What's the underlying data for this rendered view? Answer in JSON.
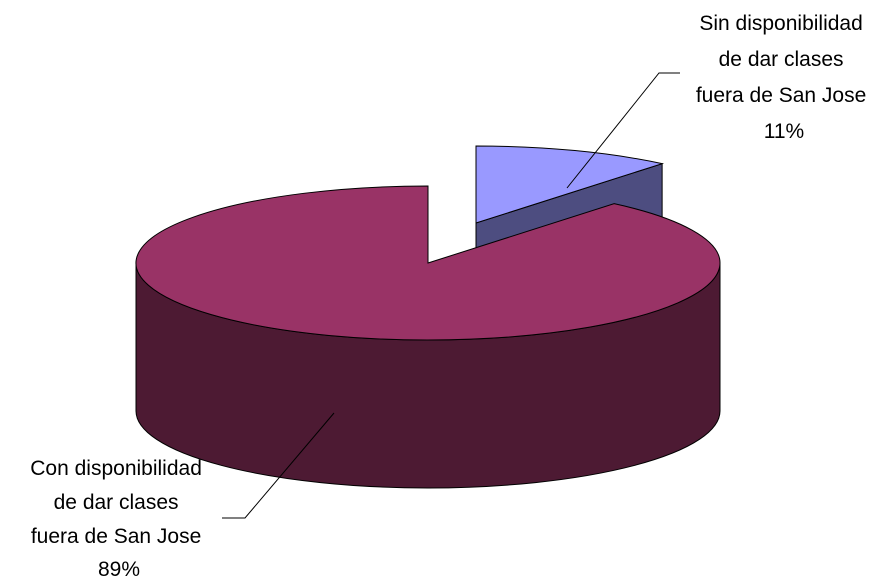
{
  "chart_data": {
    "type": "pie",
    "style": "3d-exploded",
    "title": "",
    "legend": "none",
    "slices": [
      {
        "label_lines": [
          "Sin disponibilidad",
          "de dar clases",
          "fuera de San Jose"
        ],
        "percent_label": "11%",
        "value": 11,
        "top_color": "#9999ff",
        "side_color": "#4d4d80"
      },
      {
        "label_lines": [
          "Con disponibilidad",
          "de dar clases",
          "fuera de San Jose"
        ],
        "percent_label": "89%",
        "value": 89,
        "top_color": "#993366",
        "side_color": "#4d1a33"
      }
    ]
  }
}
